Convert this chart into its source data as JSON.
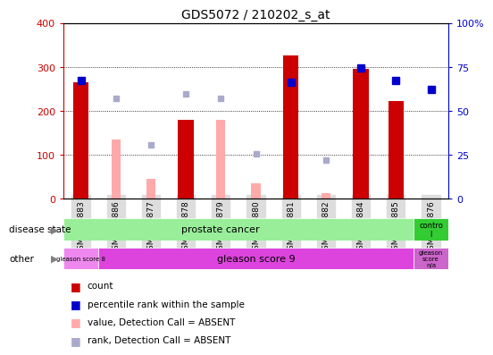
{
  "title": "GDS5072 / 210202_s_at",
  "samples": [
    "GSM1095883",
    "GSM1095886",
    "GSM1095877",
    "GSM1095878",
    "GSM1095879",
    "GSM1095880",
    "GSM1095881",
    "GSM1095882",
    "GSM1095884",
    "GSM1095885",
    "GSM1095876"
  ],
  "count": [
    265,
    null,
    null,
    180,
    null,
    null,
    325,
    null,
    295,
    222,
    null
  ],
  "percentile_rank": [
    270,
    null,
    null,
    null,
    null,
    null,
    265,
    null,
    298,
    270,
    248
  ],
  "value_absent": [
    null,
    135,
    45,
    null,
    180,
    35,
    null,
    12,
    null,
    null,
    null
  ],
  "rank_absent": [
    null,
    228,
    122,
    238,
    228,
    103,
    null,
    88,
    null,
    null,
    null
  ],
  "ylim_left": [
    0,
    400
  ],
  "yticks_left": [
    0,
    100,
    200,
    300,
    400
  ],
  "yticks_right_vals": [
    0,
    25,
    50,
    75,
    100
  ],
  "yticks_right_labels": [
    "0",
    "25",
    "50",
    "75",
    "100%"
  ],
  "color_count": "#cc0000",
  "color_percentile": "#0000cc",
  "color_value_absent": "#ffaaaa",
  "color_rank_absent": "#aaaacc",
  "color_prostate": "#99ee99",
  "color_control": "#33cc33",
  "color_gleason8": "#ee88ee",
  "color_gleason9": "#dd44dd",
  "color_gleasonna": "#cc66cc",
  "color_xticklabels": "#cccccc",
  "bar_width": 0.4
}
